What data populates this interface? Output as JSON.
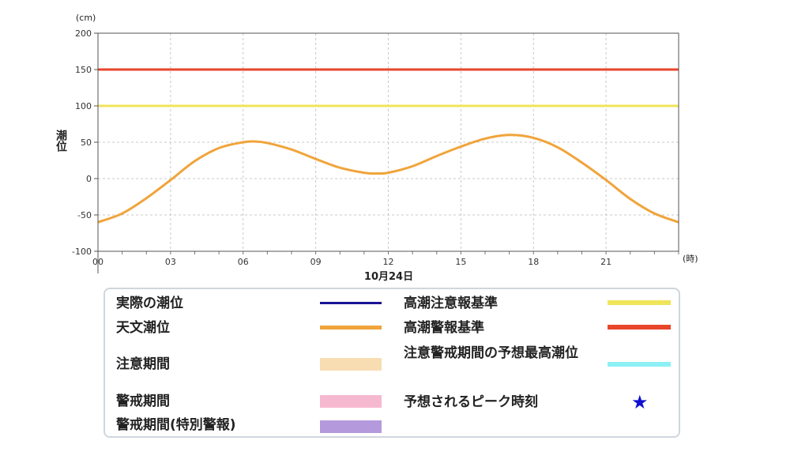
{
  "chart_data": {
    "type": "line",
    "y_unit": "(cm)",
    "ylabel": "潮位",
    "x_unit": "(時)",
    "date_label": "10月24日",
    "ylim": [
      -100,
      200
    ],
    "yticks": [
      200,
      150,
      100,
      50,
      0,
      -50,
      -100
    ],
    "xlim": [
      0,
      24
    ],
    "xticks": [
      0,
      3,
      6,
      9,
      12,
      15,
      18,
      21
    ],
    "xtick_labels": [
      "00",
      "03",
      "06",
      "09",
      "12",
      "15",
      "18",
      "21"
    ],
    "grid": true,
    "thresholds": [
      {
        "name": "高潮警報基準",
        "value": 150,
        "color": "#e8452b"
      },
      {
        "name": "高潮注意報基準",
        "value": 100,
        "color": "#f0e45a"
      }
    ],
    "series": [
      {
        "name": "天文潮位",
        "color": "#f0a43a",
        "x": [
          0,
          1,
          2,
          3,
          4,
          5,
          6,
          6.5,
          7,
          8,
          9,
          10,
          11,
          11.5,
          12,
          13,
          14,
          15,
          16,
          17,
          18,
          19,
          20,
          21,
          22,
          23,
          24
        ],
        "y": [
          -60,
          -48,
          -27,
          -2,
          24,
          42,
          50,
          51,
          49,
          40,
          27,
          15,
          8,
          7,
          8,
          17,
          31,
          44,
          55,
          60,
          56,
          43,
          22,
          -2,
          -28,
          -48,
          -60
        ]
      }
    ]
  },
  "legend": {
    "items": [
      {
        "label": "実際の潮位",
        "color": "#1a1496",
        "kind": "line"
      },
      {
        "label": "天文潮位",
        "color": "#f0a43a",
        "kind": "line"
      },
      {
        "label": "注意期間",
        "color": "#f8ddb2",
        "kind": "band"
      },
      {
        "label": "警戒期間",
        "color": "#f6b8cf",
        "kind": "band"
      },
      {
        "label": "警戒期間(特別警報)",
        "color": "#b49add",
        "kind": "band"
      },
      {
        "label": "高潮注意報基準",
        "color": "#f0e45a",
        "kind": "line"
      },
      {
        "label": "高潮警報基準",
        "color": "#e8452b",
        "kind": "line"
      },
      {
        "label": "注意警戒期間の予想最高潮位",
        "color": "#8cf0f5",
        "kind": "line"
      },
      {
        "label": "予想されるピーク時刻",
        "color": "#1010d0",
        "kind": "star",
        "symbol": "★"
      }
    ]
  }
}
